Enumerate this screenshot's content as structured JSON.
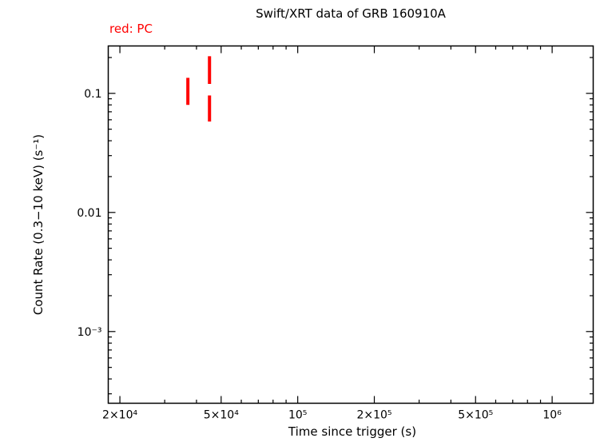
{
  "title": "Swift/XRT data of GRB 160910A",
  "legend": {
    "label": "red: PC",
    "color": "#ff0000"
  },
  "chart_data": {
    "type": "scatter",
    "title": "Swift/XRT data of GRB 160910A",
    "xlabel": "Time since trigger (s)",
    "ylabel": "Count Rate (0.3−10 keV) (s⁻¹)",
    "xscale": "log",
    "yscale": "log",
    "xlim": [
      18000,
      1450000
    ],
    "ylim": [
      0.00025,
      0.25
    ],
    "grid": false,
    "legend_position": "top-left",
    "x_ticks": [
      {
        "value": 20000,
        "label": "2×10⁴"
      },
      {
        "value": 50000,
        "label": "5×10⁴"
      },
      {
        "value": 100000,
        "label": "10⁵"
      },
      {
        "value": 200000,
        "label": "2×10⁵"
      },
      {
        "value": 500000,
        "label": "5×10⁵"
      },
      {
        "value": 1000000,
        "label": "10⁶"
      }
    ],
    "y_ticks": [
      {
        "value": 0.1,
        "label": "0.1"
      },
      {
        "value": 0.01,
        "label": "0.01"
      },
      {
        "value": 0.001,
        "label": "10⁻³"
      }
    ],
    "series": [
      {
        "name": "PC",
        "color": "#ff0000",
        "marker": "vertical-error-bar",
        "points": [
          {
            "t": 37000,
            "rate": 0.105,
            "rate_lo": 0.08,
            "rate_hi": 0.135
          },
          {
            "t": 45000,
            "rate": 0.155,
            "rate_lo": 0.12,
            "rate_hi": 0.205
          },
          {
            "t": 45000,
            "rate": 0.074,
            "rate_lo": 0.058,
            "rate_hi": 0.096
          }
        ]
      }
    ]
  }
}
